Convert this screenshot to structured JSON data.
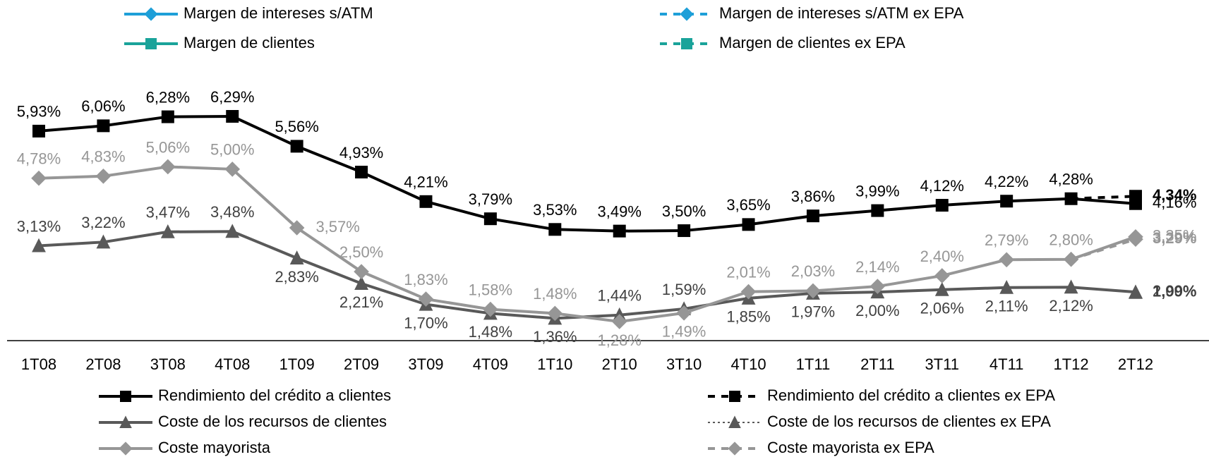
{
  "chart_data": {
    "type": "line",
    "categories": [
      "1T08",
      "2T08",
      "3T08",
      "4T08",
      "1T09",
      "2T09",
      "3T09",
      "4T09",
      "1T10",
      "2T10",
      "3T10",
      "4T10",
      "1T11",
      "2T11",
      "3T11",
      "4T11",
      "1T12",
      "2T12"
    ],
    "series": [
      {
        "name": "Margen de intereses s/ATM",
        "color": "#1e9fd8",
        "marker": "diamond",
        "dash": "solid",
        "legend": "top",
        "values": [
          null,
          null,
          null,
          null,
          null,
          null,
          null,
          null,
          null,
          null,
          null,
          null,
          null,
          null,
          null,
          null,
          null,
          null
        ]
      },
      {
        "name": "Margen de intereses s/ATM ex EPA",
        "color": "#1e9fd8",
        "marker": "diamond",
        "dash": "dashed",
        "legend": "top",
        "values": [
          null,
          null,
          null,
          null,
          null,
          null,
          null,
          null,
          null,
          null,
          null,
          null,
          null,
          null,
          null,
          null,
          null,
          null
        ]
      },
      {
        "name": "Margen de clientes",
        "color": "#1aa39a",
        "marker": "square",
        "dash": "solid",
        "legend": "top",
        "values": [
          null,
          null,
          null,
          null,
          null,
          null,
          null,
          null,
          null,
          null,
          null,
          null,
          null,
          null,
          null,
          null,
          null,
          null
        ]
      },
      {
        "name": "Margen de clientes ex EPA",
        "color": "#1aa39a",
        "marker": "square",
        "dash": "dashed",
        "legend": "top",
        "values": [
          null,
          null,
          null,
          null,
          null,
          null,
          null,
          null,
          null,
          null,
          null,
          null,
          null,
          null,
          null,
          null,
          null,
          null
        ]
      },
      {
        "name": "Rendimiento del crédito a clientes",
        "color": "#000000",
        "marker": "square",
        "dash": "solid",
        "legend": "bottom",
        "values": [
          5.93,
          6.06,
          6.28,
          6.29,
          5.56,
          4.93,
          4.21,
          3.79,
          3.53,
          3.49,
          3.5,
          3.65,
          3.86,
          3.99,
          4.12,
          4.22,
          4.28,
          4.16
        ],
        "value_labels": [
          "5,93%",
          "6,06%",
          "6,28%",
          "6,29%",
          "5,56%",
          "4,93%",
          "4,21%",
          "3,79%",
          "3,53%",
          "3,49%",
          "3,50%",
          "3,65%",
          "3,86%",
          "3,99%",
          "4,12%",
          "4,22%",
          "4,28%",
          "4,16%"
        ]
      },
      {
        "name": "Rendimiento del crédito a clientes ex EPA",
        "color": "#000000",
        "marker": "square",
        "dash": "dashed",
        "legend": "bottom",
        "values": [
          null,
          null,
          null,
          null,
          null,
          null,
          null,
          null,
          null,
          null,
          null,
          null,
          null,
          null,
          null,
          null,
          4.28,
          4.34
        ],
        "value_labels": [
          null,
          null,
          null,
          null,
          null,
          null,
          null,
          null,
          null,
          null,
          null,
          null,
          null,
          null,
          null,
          null,
          null,
          "4,34%"
        ]
      },
      {
        "name": "Coste de los recursos de clientes",
        "color": "#595959",
        "marker": "triangle",
        "dash": "solid",
        "legend": "bottom",
        "values": [
          3.13,
          3.22,
          3.47,
          3.48,
          2.83,
          2.21,
          1.7,
          1.48,
          1.36,
          1.44,
          1.59,
          1.85,
          1.97,
          2.0,
          2.06,
          2.11,
          2.12,
          2.0
        ],
        "value_labels": [
          "3,13%",
          "3,22%",
          "3,47%",
          "3,48%",
          "2,83%",
          "2,21%",
          "1,70%",
          "1,48%",
          "1,36%",
          "1,44%",
          "1,59%",
          "1,85%",
          "1,97%",
          "2,00%",
          "2,06%",
          "2,11%",
          "2,12%",
          "2,00%"
        ]
      },
      {
        "name": "Coste de los recursos de clientes ex EPA",
        "color": "#595959",
        "marker": "triangle",
        "dash": "dotted",
        "legend": "bottom",
        "values": [
          null,
          null,
          null,
          null,
          null,
          null,
          null,
          null,
          null,
          null,
          null,
          null,
          null,
          null,
          null,
          null,
          2.12,
          1.99
        ],
        "value_labels": [
          null,
          null,
          null,
          null,
          null,
          null,
          null,
          null,
          null,
          null,
          null,
          null,
          null,
          null,
          null,
          null,
          null,
          "1,99%"
        ]
      },
      {
        "name": "Coste mayorista",
        "color": "#969696",
        "marker": "diamond",
        "dash": "solid",
        "legend": "bottom",
        "values": [
          4.78,
          4.83,
          5.06,
          5.0,
          3.57,
          2.5,
          1.83,
          1.58,
          1.48,
          1.28,
          1.49,
          2.01,
          2.03,
          2.14,
          2.4,
          2.79,
          2.8,
          3.35
        ],
        "value_labels": [
          "4,78%",
          "4,83%",
          "5,06%",
          "5,00%",
          "3,57%",
          "2,50%",
          "1,83%",
          "1,58%",
          "1,48%",
          "1,28%",
          "1,49%",
          "2,01%",
          "2,03%",
          "2,14%",
          "2,40%",
          "2,79%",
          "2,80%",
          "3,35%"
        ]
      },
      {
        "name": "Coste mayorista ex EPA",
        "color": "#969696",
        "marker": "diamond",
        "dash": "dashed",
        "legend": "bottom",
        "values": [
          null,
          null,
          null,
          null,
          null,
          null,
          null,
          null,
          null,
          null,
          null,
          null,
          null,
          null,
          null,
          null,
          2.8,
          3.29
        ],
        "value_labels": [
          null,
          null,
          null,
          null,
          null,
          null,
          null,
          null,
          null,
          null,
          null,
          null,
          null,
          null,
          null,
          null,
          null,
          "3,29%"
        ]
      }
    ]
  }
}
